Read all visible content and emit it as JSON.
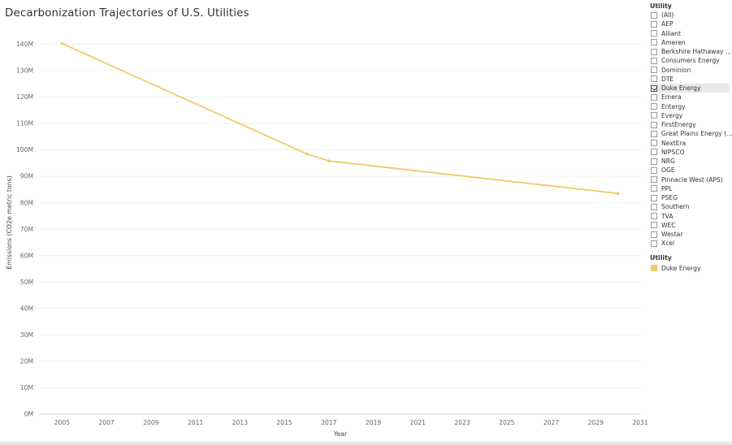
{
  "title": "Decarbonization Trajectories of  U.S. Utilities",
  "filter": {
    "title": "Utility",
    "items": [
      {
        "label": "(All)",
        "checked": false
      },
      {
        "label": "AEP",
        "checked": false
      },
      {
        "label": "Alliant",
        "checked": false
      },
      {
        "label": "Ameren",
        "checked": false
      },
      {
        "label": "Berkshire Hathaway ...",
        "checked": false
      },
      {
        "label": "Consumers Energy",
        "checked": false
      },
      {
        "label": "Dominion",
        "checked": false
      },
      {
        "label": "DTE",
        "checked": false
      },
      {
        "label": "Duke Energy",
        "checked": true
      },
      {
        "label": "Emera",
        "checked": false
      },
      {
        "label": "Entergy",
        "checked": false
      },
      {
        "label": "Evergy",
        "checked": false
      },
      {
        "label": "FirstEnergy",
        "checked": false
      },
      {
        "label": "Great Plains Energy (...",
        "checked": false
      },
      {
        "label": "NextEra",
        "checked": false
      },
      {
        "label": "NIPSCO",
        "checked": false
      },
      {
        "label": "NRG",
        "checked": false
      },
      {
        "label": "OGE",
        "checked": false
      },
      {
        "label": "Pinnacle West (APS)",
        "checked": false
      },
      {
        "label": "PPL",
        "checked": false
      },
      {
        "label": "PSEG",
        "checked": false
      },
      {
        "label": "Southern",
        "checked": false
      },
      {
        "label": "TVA",
        "checked": false
      },
      {
        "label": "WEC",
        "checked": false
      },
      {
        "label": "Westar",
        "checked": false
      },
      {
        "label": "Xcel",
        "checked": false
      }
    ]
  },
  "legend": {
    "title": "Utility",
    "items": [
      {
        "label": "Duke Energy",
        "color": "#f0cb69"
      }
    ]
  },
  "chart_data": {
    "type": "line",
    "title": "Decarbonization Trajectories of  U.S. Utilities",
    "xlabel": "Year",
    "ylabel": "Emissions (CO2e metric tons)",
    "xlim": [
      2004,
      2031
    ],
    "ylim": [
      0,
      145000000
    ],
    "xticks": [
      2005,
      2007,
      2009,
      2011,
      2013,
      2015,
      2017,
      2019,
      2021,
      2023,
      2025,
      2027,
      2029,
      2031
    ],
    "yticks": [
      0,
      10000000,
      20000000,
      30000000,
      40000000,
      50000000,
      60000000,
      70000000,
      80000000,
      90000000,
      100000000,
      110000000,
      120000000,
      130000000,
      140000000
    ],
    "yticklabels": [
      "0M",
      "10M",
      "20M",
      "30M",
      "40M",
      "50M",
      "60M",
      "70M",
      "80M",
      "90M",
      "100M",
      "110M",
      "120M",
      "130M",
      "140M"
    ],
    "grid": "horizontal",
    "legend": "right",
    "series": [
      {
        "name": "Duke Energy",
        "color": "#f0cb69",
        "x": [
          2005,
          2016,
          2017,
          2030
        ],
        "y": [
          140200000,
          98500000,
          95800000,
          83500000
        ]
      }
    ]
  }
}
